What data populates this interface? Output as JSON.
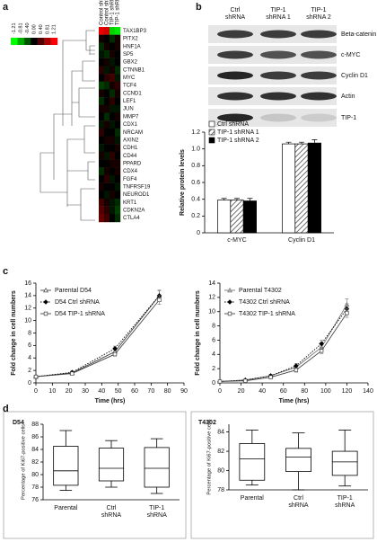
{
  "panel_labels": [
    "a",
    "b",
    "c",
    "d"
  ],
  "blot": {
    "columns": [
      [
        "Ctrl",
        "shRNA"
      ],
      [
        "TIP-1",
        "shRNA 1"
      ],
      [
        "TIP-1",
        "shRNA 2"
      ]
    ],
    "rows": [
      "Beta-catenin",
      "c-MYC",
      "Cyclin D1",
      "Actin",
      "TIP-1"
    ]
  },
  "chart_data": [
    {
      "type": "heatmap",
      "columns": [
        "Control shRNA 1",
        "Control shRNA 2",
        "TIP-1 shRNA 1",
        "TIP-1 shRNA 2"
      ],
      "rows": [
        "TAX1BP3",
        "PITX2",
        "HNF1A",
        "SP5",
        "GBX2",
        "CTNNB1",
        "MYC",
        "TCF4",
        "CCND1",
        "LEF1",
        "JUN",
        "MMP7",
        "CDX1",
        "NRCAM",
        "AXIN2",
        "CDH1",
        "CD44",
        "PPARD",
        "CDX4",
        "FGF4",
        "TNFRSF19",
        "NEUROD1",
        "KRT1",
        "CDKN2A",
        "CTLA4"
      ],
      "values": [
        [
          1.1,
          1.0,
          -1.0,
          -1.1
        ],
        [
          0.1,
          0.0,
          -0.2,
          0.1
        ],
        [
          -0.2,
          0.1,
          0.0,
          0.1
        ],
        [
          -0.1,
          -0.2,
          0.1,
          0.0
        ],
        [
          0.0,
          0.1,
          -0.1,
          0.0
        ],
        [
          0.2,
          -0.1,
          0.1,
          -0.2
        ],
        [
          0.0,
          0.2,
          0.3,
          -0.1
        ],
        [
          -0.3,
          -0.2,
          0.1,
          0.2
        ],
        [
          0.1,
          0.0,
          -0.2,
          0.1
        ],
        [
          -0.2,
          0.0,
          0.2,
          0.0
        ],
        [
          0.1,
          0.1,
          -0.1,
          -0.1
        ],
        [
          0.0,
          -0.2,
          0.0,
          0.1
        ],
        [
          -0.1,
          0.1,
          -0.1,
          0.0
        ],
        [
          0.2,
          0.0,
          0.0,
          -0.2
        ],
        [
          0.0,
          0.1,
          0.1,
          -0.1
        ],
        [
          -0.1,
          0.0,
          0.0,
          0.1
        ],
        [
          0.1,
          -0.1,
          0.2,
          0.0
        ],
        [
          0.0,
          0.0,
          0.1,
          0.1
        ],
        [
          -0.2,
          0.1,
          0.0,
          0.1
        ],
        [
          0.0,
          0.2,
          -0.1,
          0.0
        ],
        [
          0.1,
          0.0,
          0.0,
          -0.1
        ],
        [
          0.0,
          -0.1,
          0.1,
          0.0
        ],
        [
          0.3,
          0.1,
          -0.1,
          -0.2
        ],
        [
          0.4,
          0.2,
          -0.1,
          -0.3
        ],
        [
          0.5,
          0.3,
          0.0,
          -0.2
        ]
      ],
      "scale_ticks": [
        -1.21,
        -0.81,
        {
          "value": -0.4,
          "label": "-0.40"
        },
        {
          "value": 0,
          "label": "0.00"
        },
        {
          "value": 0.4,
          "label": "0.40"
        },
        0.81,
        1.21
      ],
      "colors": {
        "low": "#00ff00",
        "mid": "#000000",
        "high": "#ff0000"
      }
    },
    {
      "type": "bar",
      "categories": [
        "c-MYC",
        "Cyclin D1"
      ],
      "series": [
        {
          "name": "Ctrl shRNA",
          "color": "#ffffff",
          "values": [
            0.39,
            1.06
          ],
          "errors": [
            0.02,
            0.02
          ]
        },
        {
          "name": "TIP-1 shRNA 1",
          "color": "#ffffff",
          "hatch": true,
          "values": [
            0.39,
            1.06
          ],
          "errors": [
            0.02,
            0.02
          ]
        },
        {
          "name": "TIP-1 shRNA 2",
          "color": "#000000",
          "values": [
            0.38,
            1.07
          ],
          "errors": [
            0.03,
            0.04
          ]
        }
      ],
      "ylabel": "Relative protein levels",
      "ylim": [
        0,
        1.2
      ],
      "yticks": [
        0,
        0.2,
        0.4,
        0.6,
        0.8,
        {
          "value": 1,
          "label": "1.0"
        },
        1.2
      ],
      "legend": "upper-left"
    },
    {
      "type": "line",
      "x": [
        0,
        22,
        48,
        75
      ],
      "series": [
        {
          "name": "Parental D54",
          "color": "#444444",
          "dash": "solid",
          "marker": "triangle",
          "marker_fill": "#ffffff",
          "values": [
            1,
            1.6,
            5,
            14
          ],
          "errors": [
            0.1,
            0.2,
            0.4,
            0.9
          ]
        },
        {
          "name": "D54 Ctrl shRNA",
          "color": "#000000",
          "dash": "dotted",
          "marker": "diamond",
          "marker_fill": "#000000",
          "values": [
            1,
            1.7,
            5.5,
            14
          ],
          "errors": [
            0.1,
            0.2,
            0.4,
            0.8
          ]
        },
        {
          "name": "D54 TIP-1 shRNA",
          "color": "#444444",
          "dash": "solid",
          "marker": "square",
          "marker_fill": "#ffffff",
          "values": [
            1,
            1.5,
            4.6,
            13.3
          ],
          "errors": [
            0.1,
            0.2,
            0.3,
            0.7
          ]
        }
      ],
      "xlabel": "Time (hrs)",
      "ylabel": "Fold change in cell numbers",
      "xlim": [
        0,
        90
      ],
      "xticks": [
        0,
        10,
        20,
        30,
        40,
        50,
        60,
        70,
        80,
        90
      ],
      "ylim": [
        0,
        16
      ],
      "yticks": [
        0,
        2,
        4,
        6,
        8,
        10,
        12,
        14,
        16
      ],
      "legend": "upper-left"
    },
    {
      "type": "line",
      "x": [
        0,
        24,
        48,
        72,
        96,
        120
      ],
      "series": [
        {
          "name": "Parental T4302",
          "color": "#777777",
          "dash": "solid",
          "marker": "triangle",
          "marker_fill": "#bbbbbb",
          "values": [
            0.2,
            0.4,
            1,
            2.2,
            5,
            11
          ],
          "errors": [
            0.1,
            0.1,
            0.2,
            0.3,
            0.5,
            0.8
          ]
        },
        {
          "name": "T4302 Ctrl shRNA",
          "color": "#000000",
          "dash": "dotted",
          "marker": "diamond",
          "marker_fill": "#000000",
          "values": [
            0.2,
            0.4,
            1,
            2.4,
            5.5,
            10.4
          ],
          "errors": [
            0.1,
            0.1,
            0.2,
            0.3,
            0.5,
            0.7
          ]
        },
        {
          "name": "T4302 TIP-1 shRNA",
          "color": "#444444",
          "dash": "solid",
          "marker": "square",
          "marker_fill": "#ffffff",
          "values": [
            0.2,
            0.3,
            0.8,
            1.8,
            4.5,
            9.8
          ],
          "errors": [
            0.1,
            0.1,
            0.2,
            0.3,
            0.4,
            0.6
          ]
        }
      ],
      "xlabel": "Time (hrs)",
      "ylabel": "Fold change in cell numbers",
      "xlim": [
        0,
        140
      ],
      "xticks": [
        0,
        20,
        40,
        60,
        80,
        100,
        120,
        140
      ],
      "ylim": [
        0,
        14
      ],
      "yticks": [
        0,
        2,
        4,
        6,
        8,
        10,
        12,
        14
      ],
      "legend": "upper-left"
    },
    {
      "type": "box",
      "title": "D54",
      "categories": [
        [
          "Parental"
        ],
        [
          "Ctrl",
          "shRNA"
        ],
        [
          "TIP-1",
          "shRNA"
        ]
      ],
      "boxes": [
        {
          "min": 77.5,
          "q1": 78.3,
          "median": 80.6,
          "q3": 84.5,
          "max": 87
        },
        {
          "min": 78,
          "q1": 79,
          "median": 81,
          "q3": 84.2,
          "max": 85.4
        },
        {
          "min": 77,
          "q1": 78,
          "median": 81,
          "q3": 84.3,
          "max": 85.7
        }
      ],
      "ylabel": "Percentage of Ki67-positive cells",
      "ylim": [
        76,
        88
      ],
      "yticks": [
        76,
        78,
        80,
        82,
        84,
        86,
        88
      ]
    },
    {
      "type": "box",
      "title": "T4302",
      "categories": [
        [
          "Parental"
        ],
        [
          "Ctrl",
          "shRNA"
        ],
        [
          "TIP-1",
          "shRNA"
        ]
      ],
      "boxes": [
        {
          "min": 78.5,
          "q1": 79,
          "median": 81.2,
          "q3": 82.8,
          "max": 84.2
        },
        {
          "min": 78,
          "q1": 79.9,
          "median": 81.4,
          "q3": 82.3,
          "max": 83.9
        },
        {
          "min": 78.4,
          "q1": 79.5,
          "median": 80.9,
          "q3": 82,
          "max": 84.2
        }
      ],
      "ylabel": "Percentage of Ki67-positive cells",
      "ylim": [
        78,
        84.8
      ],
      "yticks": [
        78,
        80,
        82,
        84
      ]
    }
  ]
}
